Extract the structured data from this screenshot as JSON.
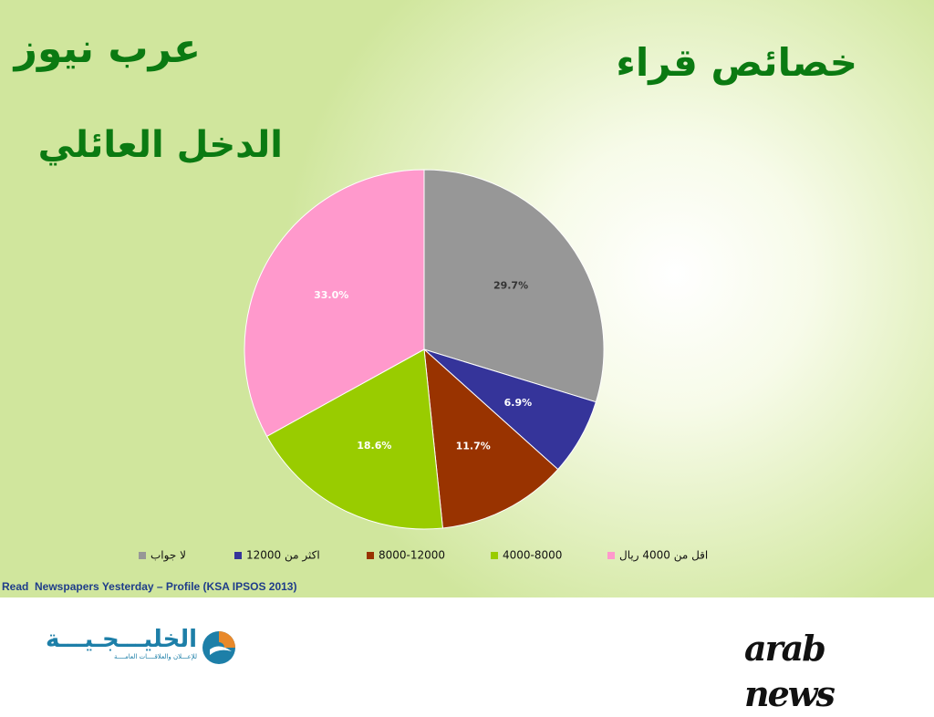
{
  "header": {
    "brand_title": "عرب نيوز",
    "main_title": "خصائص قراء",
    "sub_title": "الدخل العائلي"
  },
  "chart_data": {
    "type": "pie",
    "title": "",
    "start_angle_deg": 0,
    "direction": "clockwise",
    "slices": [
      {
        "label": "لا جواب",
        "value": 29.7,
        "display": "29.7%",
        "color": "#979797",
        "label_color": "#333333"
      },
      {
        "label": "اكثر من 12000",
        "value": 6.9,
        "display": "6.9%",
        "color": "#35349a",
        "label_color": "#ffffff"
      },
      {
        "label": "8000-12000",
        "value": 11.7,
        "display": "11.7%",
        "color": "#993300",
        "label_color": "#ffffff"
      },
      {
        "label": "4000-8000",
        "value": 18.6,
        "display": "18.6%",
        "color": "#99cc00",
        "label_color": "#ffffff"
      },
      {
        "label": "اقل من 4000 ريال",
        "value": 33.0,
        "display": "33.0%",
        "color": "#ff99cc",
        "label_color": "#ffffff"
      }
    ],
    "legend_position": "bottom"
  },
  "footer": {
    "source": "Read  Newspapers Yesterday – Profile (KSA IPSOS 2013)",
    "logo_left": "الخليـــجـيـــة",
    "logo_left_tagline": "للإعـــلان والعلاقــــات العامــــة",
    "logo_right": "arab news"
  },
  "colors": {
    "title_green": "#0b7a12",
    "source_blue": "#1f3d8a",
    "khaleejia_blue": "#1d7fa8",
    "khaleejia_orange": "#e8892b"
  },
  "icons": {
    "khaleejia_mark": "khaleejia-logo-icon"
  }
}
